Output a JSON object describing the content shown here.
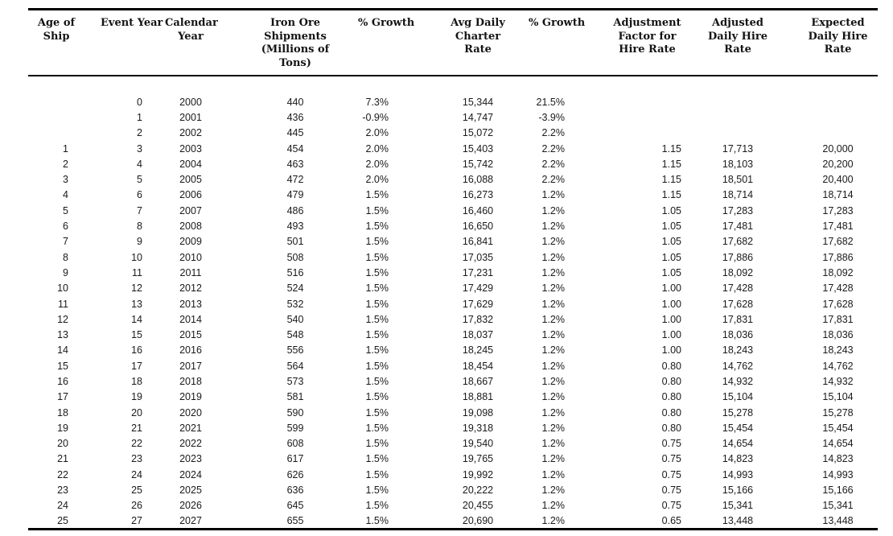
{
  "colors": {
    "background": "#ffffff",
    "header_text": "#141414",
    "body_text": "#1a1a1a",
    "rule": "#000000"
  },
  "table": {
    "columns": [
      {
        "label": "Age of Ship"
      },
      {
        "label": "Event Year"
      },
      {
        "label": "Calendar Year"
      },
      {
        "label": "Iron Ore Shipments (Millions of Tons)"
      },
      {
        "label": "% Growth"
      },
      {
        "label": "Avg Daily Charter Rate"
      },
      {
        "label": "% Growth"
      },
      {
        "label": "Adjustment Factor for Hire Rate"
      },
      {
        "label": "Adjusted Daily Hire Rate"
      },
      {
        "label": "Expected Daily Hire Rate"
      }
    ],
    "rows": [
      [
        "",
        "0",
        "2000",
        "440",
        "7.3%",
        "15,344",
        "21.5%",
        "",
        "",
        ""
      ],
      [
        "",
        "1",
        "2001",
        "436",
        "-0.9%",
        "14,747",
        "-3.9%",
        "",
        "",
        ""
      ],
      [
        "",
        "2",
        "2002",
        "445",
        "2.0%",
        "15,072",
        "2.2%",
        "",
        "",
        ""
      ],
      [
        "1",
        "3",
        "2003",
        "454",
        "2.0%",
        "15,403",
        "2.2%",
        "1.15",
        "17,713",
        "20,000"
      ],
      [
        "2",
        "4",
        "2004",
        "463",
        "2.0%",
        "15,742",
        "2.2%",
        "1.15",
        "18,103",
        "20,200"
      ],
      [
        "3",
        "5",
        "2005",
        "472",
        "2.0%",
        "16,088",
        "2.2%",
        "1.15",
        "18,501",
        "20,400"
      ],
      [
        "4",
        "6",
        "2006",
        "479",
        "1.5%",
        "16,273",
        "1.2%",
        "1.15",
        "18,714",
        "18,714"
      ],
      [
        "5",
        "7",
        "2007",
        "486",
        "1.5%",
        "16,460",
        "1.2%",
        "1.05",
        "17,283",
        "17,283"
      ],
      [
        "6",
        "8",
        "2008",
        "493",
        "1.5%",
        "16,650",
        "1.2%",
        "1.05",
        "17,481",
        "17,481"
      ],
      [
        "7",
        "9",
        "2009",
        "501",
        "1.5%",
        "16,841",
        "1.2%",
        "1.05",
        "17,682",
        "17,682"
      ],
      [
        "8",
        "10",
        "2010",
        "508",
        "1.5%",
        "17,035",
        "1.2%",
        "1.05",
        "17,886",
        "17,886"
      ],
      [
        "9",
        "11",
        "2011",
        "516",
        "1.5%",
        "17,231",
        "1.2%",
        "1.05",
        "18,092",
        "18,092"
      ],
      [
        "10",
        "12",
        "2012",
        "524",
        "1.5%",
        "17,429",
        "1.2%",
        "1.00",
        "17,428",
        "17,428"
      ],
      [
        "11",
        "13",
        "2013",
        "532",
        "1.5%",
        "17,629",
        "1.2%",
        "1.00",
        "17,628",
        "17,628"
      ],
      [
        "12",
        "14",
        "2014",
        "540",
        "1.5%",
        "17,832",
        "1.2%",
        "1.00",
        "17,831",
        "17,831"
      ],
      [
        "13",
        "15",
        "2015",
        "548",
        "1.5%",
        "18,037",
        "1.2%",
        "1.00",
        "18,036",
        "18,036"
      ],
      [
        "14",
        "16",
        "2016",
        "556",
        "1.5%",
        "18,245",
        "1.2%",
        "1.00",
        "18,243",
        "18,243"
      ],
      [
        "15",
        "17",
        "2017",
        "564",
        "1.5%",
        "18,454",
        "1.2%",
        "0.80",
        "14,762",
        "14,762"
      ],
      [
        "16",
        "18",
        "2018",
        "573",
        "1.5%",
        "18,667",
        "1.2%",
        "0.80",
        "14,932",
        "14,932"
      ],
      [
        "17",
        "19",
        "2019",
        "581",
        "1.5%",
        "18,881",
        "1.2%",
        "0.80",
        "15,104",
        "15,104"
      ],
      [
        "18",
        "20",
        "2020",
        "590",
        "1.5%",
        "19,098",
        "1.2%",
        "0.80",
        "15,278",
        "15,278"
      ],
      [
        "19",
        "21",
        "2021",
        "599",
        "1.5%",
        "19,318",
        "1.2%",
        "0.80",
        "15,454",
        "15,454"
      ],
      [
        "20",
        "22",
        "2022",
        "608",
        "1.5%",
        "19,540",
        "1.2%",
        "0.75",
        "14,654",
        "14,654"
      ],
      [
        "21",
        "23",
        "2023",
        "617",
        "1.5%",
        "19,765",
        "1.2%",
        "0.75",
        "14,823",
        "14,823"
      ],
      [
        "22",
        "24",
        "2024",
        "626",
        "1.5%",
        "19,992",
        "1.2%",
        "0.75",
        "14,993",
        "14,993"
      ],
      [
        "23",
        "25",
        "2025",
        "636",
        "1.5%",
        "20,222",
        "1.2%",
        "0.75",
        "15,166",
        "15,166"
      ],
      [
        "24",
        "26",
        "2026",
        "645",
        "1.5%",
        "20,455",
        "1.2%",
        "0.75",
        "15,341",
        "15,341"
      ],
      [
        "25",
        "27",
        "2027",
        "655",
        "1.5%",
        "20,690",
        "1.2%",
        "0.65",
        "13,448",
        "13,448"
      ]
    ]
  }
}
